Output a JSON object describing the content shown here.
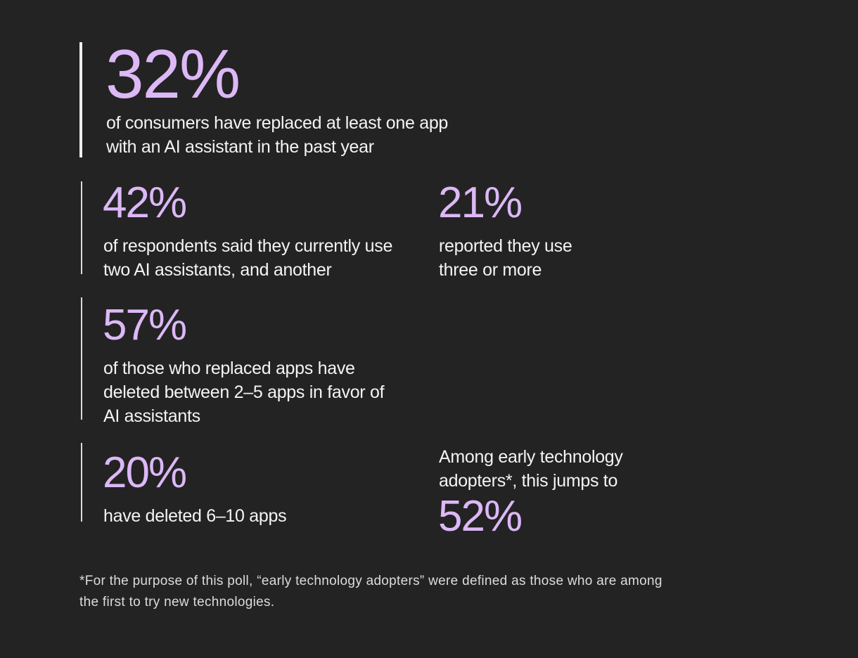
{
  "headline": {
    "figure": "32%",
    "text": "of consumers have replaced at least one app with an AI assistant in the past year"
  },
  "stats": [
    {
      "figure": "42%",
      "text": "of respondents said they currently use two AI assistants, and another"
    },
    {
      "figure": "21%",
      "text": "reported they use three or more"
    },
    {
      "figure": "57%",
      "text": "of those who replaced apps have deleted between 2–5 apps in favor of AI assistants"
    },
    {
      "figure": "20%",
      "text": "have deleted 6–10 apps"
    },
    {
      "text": "Among early technology adopters*, this jumps to",
      "figure": "52%"
    }
  ],
  "footnote": "*For the purpose of this poll, “early technology adopters” were defined as those who are among the first to try new technologies."
}
